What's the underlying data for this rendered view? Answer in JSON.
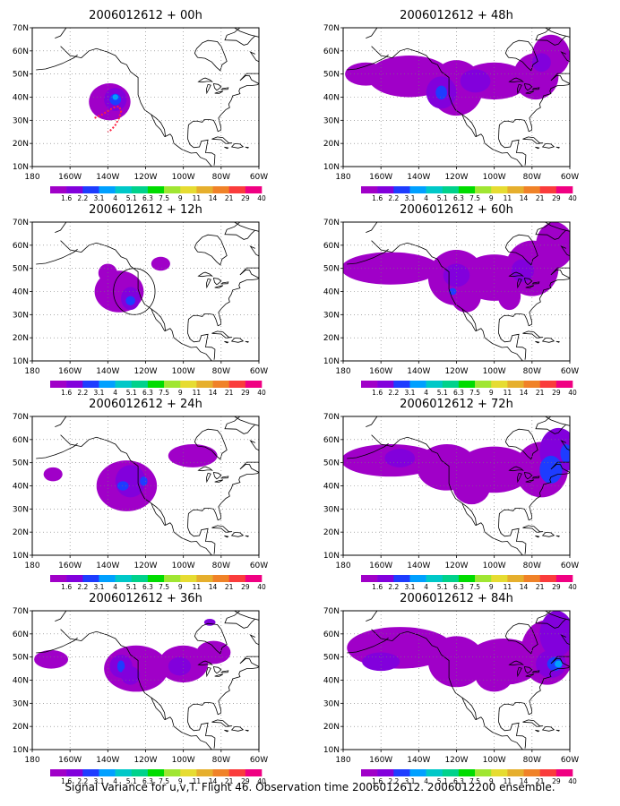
{
  "caption": "Signal Variance for u,v,T. Flight 46. Observation time 2006012612. 2006012200 ensemble.",
  "colorbar": {
    "labels": [
      "1.6",
      "2.2",
      "3.1",
      "4",
      "5.1",
      "6.3",
      "7.5",
      "9",
      "11",
      "14",
      "21",
      "29",
      "40"
    ],
    "colors": [
      "#a000c8",
      "#8200dc",
      "#1e3cff",
      "#00a0ff",
      "#00c8c8",
      "#00d28c",
      "#00dc00",
      "#a0e632",
      "#e6dc32",
      "#e6af2d",
      "#f08228",
      "#fa3c3c",
      "#f00082"
    ]
  },
  "map": {
    "lat_labels": [
      "10N",
      "20N",
      "30N",
      "40N",
      "50N",
      "60N",
      "70N"
    ],
    "lon_labels": [
      "180",
      "160W",
      "140W",
      "120W",
      "100W",
      "80W",
      "60W"
    ],
    "fill_color": "#a000c8",
    "dark_color": "#8200dc",
    "blue_color": "#1e3cff",
    "light_blue_color": "#00a0ff",
    "track_color": "#ff2040"
  },
  "panels": [
    {
      "title": "2006012612 + 00h",
      "lead": "00h"
    },
    {
      "title": "2006012612 + 48h",
      "lead": "48h"
    },
    {
      "title": "2006012612 + 12h",
      "lead": "12h"
    },
    {
      "title": "2006012612 + 60h",
      "lead": "60h"
    },
    {
      "title": "2006012612 + 24h",
      "lead": "24h"
    },
    {
      "title": "2006012612 + 72h",
      "lead": "72h"
    },
    {
      "title": "2006012612 + 36h",
      "lead": "36h"
    },
    {
      "title": "2006012612 + 84h",
      "lead": "84h"
    }
  ]
}
